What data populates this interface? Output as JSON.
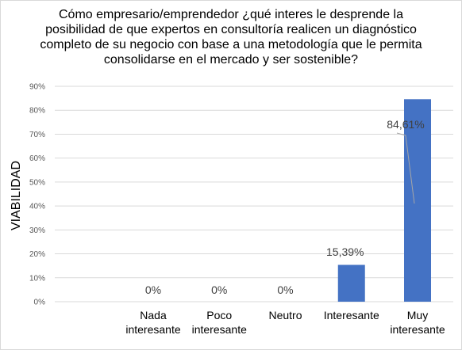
{
  "chart_data": {
    "type": "bar",
    "title": "Cómo empresario/emprendedor  ¿qué interes le desprende la posibilidad de que expertos  en consultoría  realicen un diagnóstico completo  de su negocio con base a una metodología  que le permita consolidarse  en el mercado  y ser sostenible?",
    "ylabel": "VIABILIDAD",
    "xlabel": "",
    "categories": [
      "Nada\ninteresante",
      "Poco\ninteresante",
      "Neutro",
      "Interesante",
      "Muy\ninteresante"
    ],
    "values": [
      0,
      0,
      0,
      15.39,
      84.61
    ],
    "value_labels": [
      "0%",
      "0%",
      "0%",
      "15,39%",
      "84,61%"
    ],
    "ylim": [
      0,
      90
    ],
    "yticks": [
      0,
      10,
      20,
      30,
      40,
      50,
      60,
      70,
      80,
      90
    ],
    "ytick_labels": [
      "0%",
      "10%",
      "20%",
      "30%",
      "40%",
      "50%",
      "60%",
      "70%",
      "80%",
      "90%"
    ],
    "grid": true,
    "legend": false,
    "bar_color": "#4472C4"
  },
  "colors": {
    "grid": "#d9d9d9",
    "leader_line": "#a6a6a6"
  }
}
